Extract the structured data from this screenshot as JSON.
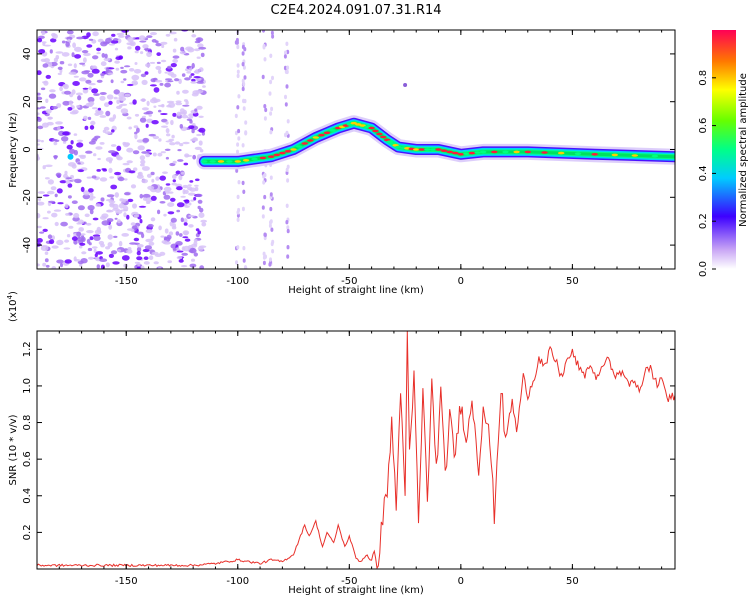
{
  "title": "C2E4.2024.091.07.31.R14",
  "top_panel": {
    "xlabel": "Height of straight line (km)",
    "ylabel": "Frequency (Hz)",
    "colorbar_label": "Normalized spectral amplitude"
  },
  "bottom_panel": {
    "xlabel": "Height of straight line (km)",
    "ylabel": "SNR (10 * v/v)",
    "y_multiplier": "(x10",
    "y_multiplier_exp": "4",
    "y_multiplier_close": ")"
  },
  "chart_data": [
    {
      "type": "heatmap",
      "name": "spectrogram",
      "title": "C2E4.2024.091.07.31.R14",
      "xlabel": "Height of straight line (km)",
      "ylabel": "Frequency (Hz)",
      "xlim": [
        -190,
        96
      ],
      "ylim": [
        -50,
        50
      ],
      "xticks": [
        -150,
        -100,
        -50,
        0,
        50
      ],
      "yticks": [
        -40,
        -20,
        0,
        20,
        40
      ],
      "colorbar": {
        "label": "Normalized spectral amplitude",
        "range": [
          0,
          1
        ],
        "ticks": [
          0.0,
          0.2,
          0.4,
          0.6,
          0.8
        ]
      },
      "ridge": {
        "x": [
          -115,
          -100,
          -85,
          -75,
          -65,
          -55,
          -48,
          -40,
          -33,
          -28,
          -20,
          -10,
          0,
          10,
          30,
          60,
          96
        ],
        "frequency": [
          -5,
          -5,
          -3,
          0,
          5,
          9,
          11,
          9,
          4,
          1,
          0,
          0,
          -2,
          -1,
          -1,
          -2,
          -3
        ]
      }
    },
    {
      "type": "line",
      "name": "snr",
      "xlabel": "Height of straight line (km)",
      "ylabel": "SNR (10 * v/v)",
      "y_scale": "x10^4",
      "xlim": [
        -190,
        96
      ],
      "ylim": [
        0,
        1.3
      ],
      "xticks": [
        -150,
        -100,
        -50,
        0,
        50
      ],
      "yticks": [
        0.2,
        0.4,
        0.6,
        0.8,
        1.0,
        1.2
      ],
      "color": "#e8302a",
      "series": [
        {
          "name": "SNR",
          "x": [
            -190,
            -180,
            -170,
            -160,
            -150,
            -140,
            -130,
            -120,
            -110,
            -105,
            -100,
            -95,
            -90,
            -85,
            -80,
            -75,
            -70,
            -68,
            -65,
            -62,
            -60,
            -57,
            -55,
            -52,
            -50,
            -47,
            -45,
            -42,
            -40,
            -37,
            -35,
            -33,
            -31,
            -29,
            -27,
            -25,
            -24,
            -23,
            -21,
            -19,
            -17,
            -15,
            -13,
            -11,
            -9,
            -7,
            -5,
            -3,
            0,
            3,
            5,
            8,
            10,
            13,
            15,
            18,
            20,
            23,
            25,
            28,
            30,
            33,
            35,
            38,
            40,
            43,
            45,
            48,
            50,
            53,
            55,
            58,
            60,
            63,
            65,
            68,
            70,
            73,
            75,
            78,
            80,
            83,
            85,
            88,
            90,
            93,
            96
          ],
          "values": [
            0.02,
            0.02,
            0.02,
            0.02,
            0.02,
            0.02,
            0.02,
            0.02,
            0.03,
            0.04,
            0.05,
            0.04,
            0.03,
            0.05,
            0.04,
            0.08,
            0.24,
            0.18,
            0.26,
            0.12,
            0.2,
            0.14,
            0.24,
            0.12,
            0.18,
            0.06,
            0.04,
            0.08,
            0.03,
            0.06,
            0.28,
            0.45,
            0.78,
            0.35,
            0.95,
            0.45,
            1.25,
            0.6,
            1.05,
            0.25,
            0.95,
            0.4,
            1.0,
            0.55,
            0.95,
            0.5,
            0.85,
            0.6,
            0.9,
            0.7,
            0.95,
            0.55,
            0.9,
            0.7,
            0.3,
            1.0,
            0.7,
            0.92,
            0.75,
            1.05,
            0.95,
            1.05,
            1.15,
            1.1,
            1.2,
            1.12,
            1.05,
            1.15,
            1.18,
            1.1,
            1.05,
            1.12,
            1.05,
            1.08,
            1.15,
            1.1,
            1.05,
            1.08,
            1.0,
            1.03,
            0.98,
            1.08,
            1.1,
            1.0,
            1.05,
            0.92,
            0.95
          ]
        }
      ]
    }
  ]
}
